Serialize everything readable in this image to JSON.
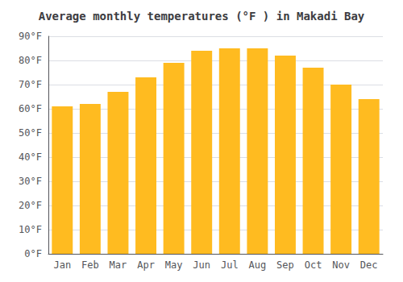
{
  "chart_data": {
    "type": "bar",
    "title": "Average monthly temperatures (°F ) in Makadi Bay",
    "categories": [
      "Jan",
      "Feb",
      "Mar",
      "Apr",
      "May",
      "Jun",
      "Jul",
      "Aug",
      "Sep",
      "Oct",
      "Nov",
      "Dec"
    ],
    "values": [
      61,
      62,
      67,
      73,
      79,
      84,
      85,
      85,
      82,
      77,
      70,
      64
    ],
    "color": "#FFBB20",
    "ylim": [
      0,
      90
    ],
    "yticks": [
      {
        "value": 0,
        "label": "0°F"
      },
      {
        "value": 10,
        "label": "10°F"
      },
      {
        "value": 20,
        "label": "20°F"
      },
      {
        "value": 30,
        "label": "30°F"
      },
      {
        "value": 40,
        "label": "40°F"
      },
      {
        "value": 50,
        "label": "50°F"
      },
      {
        "value": 60,
        "label": "60°F"
      },
      {
        "value": 70,
        "label": "70°F"
      },
      {
        "value": 80,
        "label": "80°F"
      },
      {
        "value": 90,
        "label": "90°F"
      }
    ],
    "grid": true
  }
}
